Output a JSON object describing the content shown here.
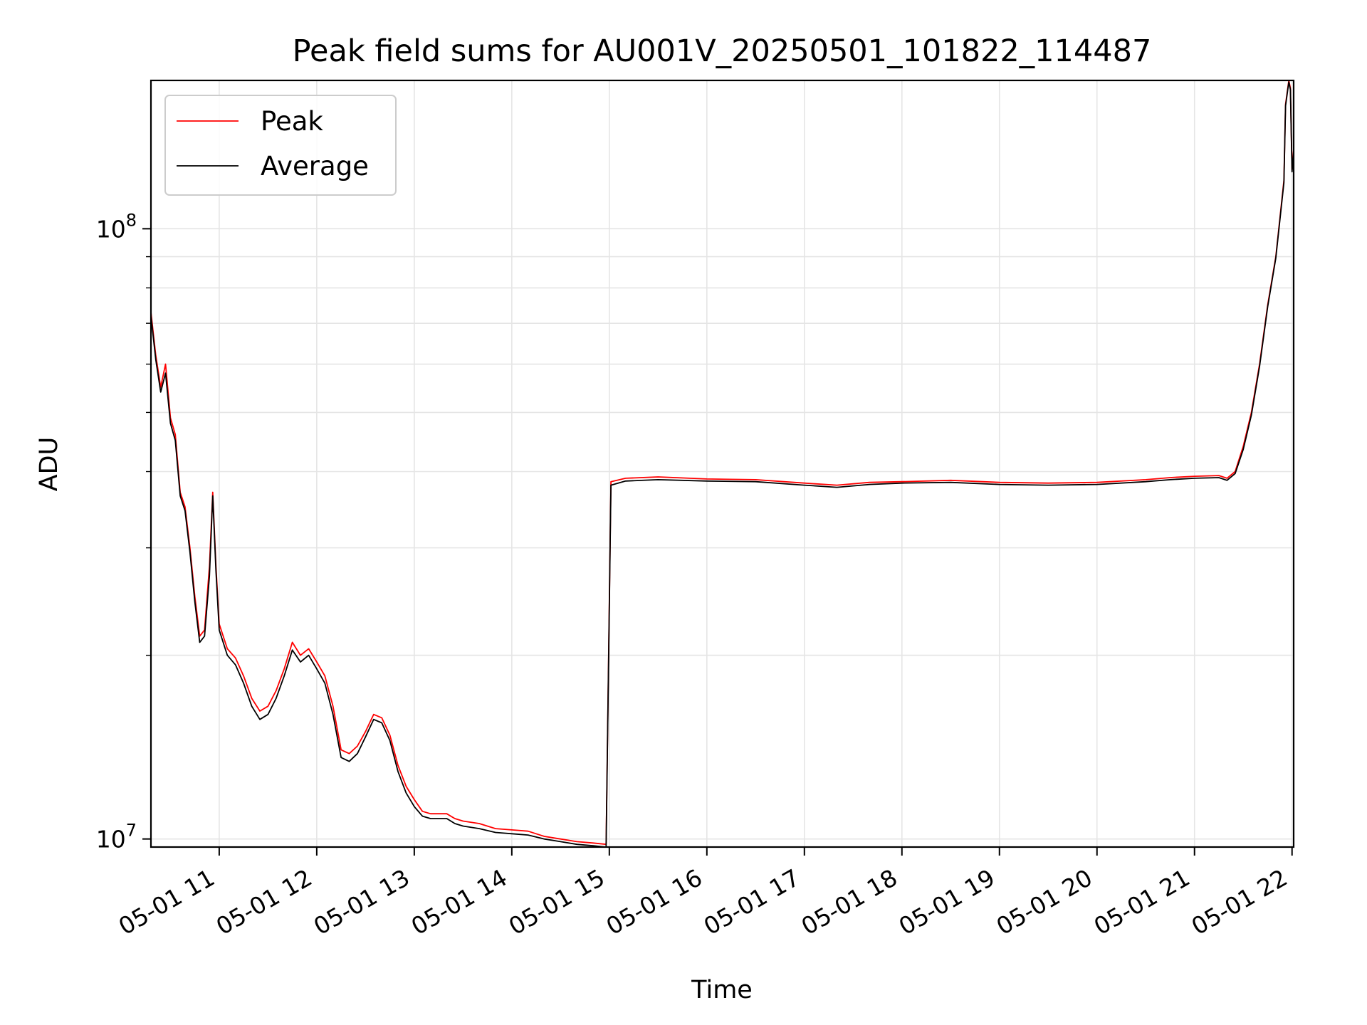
{
  "chart_data": {
    "type": "line",
    "title": "Peak field sums for AU001V_20250501_101822_114487",
    "xlabel": "Time",
    "ylabel": "ADU",
    "yscale": "log",
    "xlim": [
      "05-01 10:18",
      "05-01 22:01"
    ],
    "ylim": [
      9700000,
      175000000
    ],
    "x_tick_labels": [
      "05-01 11",
      "05-01 12",
      "05-01 13",
      "05-01 14",
      "05-01 15",
      "05-01 16",
      "05-01 17",
      "05-01 18",
      "05-01 19",
      "05-01 20",
      "05-01 21",
      "05-01 22"
    ],
    "y_tick_labels": [
      {
        "base": "10",
        "exp": "7",
        "value": 10000000
      },
      {
        "base": "10",
        "exp": "8",
        "value": 100000000
      }
    ],
    "grid": true,
    "legend_position": "upper-left",
    "series": [
      {
        "name": "Peak",
        "color": "#ff0000",
        "x": [
          "05-01 10:18",
          "05-01 10:21",
          "05-01 10:24",
          "05-01 10:27",
          "05-01 10:30",
          "05-01 10:33",
          "05-01 10:36",
          "05-01 10:39",
          "05-01 10:42",
          "05-01 10:45",
          "05-01 10:48",
          "05-01 10:51",
          "05-01 10:54",
          "05-01 10:56",
          "05-01 10:58",
          "05-01 11:00",
          "05-01 11:05",
          "05-01 11:10",
          "05-01 11:15",
          "05-01 11:20",
          "05-01 11:25",
          "05-01 11:30",
          "05-01 11:35",
          "05-01 11:40",
          "05-01 11:45",
          "05-01 11:50",
          "05-01 11:55",
          "05-01 12:00",
          "05-01 12:05",
          "05-01 12:10",
          "05-01 12:15",
          "05-01 12:20",
          "05-01 12:25",
          "05-01 12:30",
          "05-01 12:35",
          "05-01 12:40",
          "05-01 12:45",
          "05-01 12:50",
          "05-01 12:55",
          "05-01 13:00",
          "05-01 13:05",
          "05-01 13:10",
          "05-01 13:15",
          "05-01 13:20",
          "05-01 13:25",
          "05-01 13:30",
          "05-01 13:40",
          "05-01 13:50",
          "05-01 14:00",
          "05-01 14:10",
          "05-01 14:20",
          "05-01 14:30",
          "05-01 14:40",
          "05-01 14:50",
          "05-01 14:58",
          "05-01 15:01",
          "05-01 15:10",
          "05-01 15:30",
          "05-01 16:00",
          "05-01 16:30",
          "05-01 17:00",
          "05-01 17:20",
          "05-01 17:40",
          "05-01 18:00",
          "05-01 18:30",
          "05-01 19:00",
          "05-01 19:30",
          "05-01 20:00",
          "05-01 20:30",
          "05-01 20:45",
          "05-01 21:00",
          "05-01 21:15",
          "05-01 21:20",
          "05-01 21:25",
          "05-01 21:30",
          "05-01 21:35",
          "05-01 21:40",
          "05-01 21:45",
          "05-01 21:50",
          "05-01 21:55",
          "05-01 21:56",
          "05-01 21:58",
          "05-01 21:59",
          "05-01 22:00",
          "05-01 22:01"
        ],
        "y": [
          73000000,
          62000000,
          55000000,
          60000000,
          49000000,
          46000000,
          37000000,
          35000000,
          30000000,
          25000000,
          21500000,
          22000000,
          28000000,
          37000000,
          28000000,
          22500000,
          20500000,
          19800000,
          18500000,
          17000000,
          16200000,
          16500000,
          17500000,
          19000000,
          21000000,
          20000000,
          20500000,
          19500000,
          18500000,
          16500000,
          14000000,
          13800000,
          14200000,
          15000000,
          16000000,
          15800000,
          14800000,
          13200000,
          12200000,
          11600000,
          11100000,
          11000000,
          11000000,
          11000000,
          10800000,
          10700000,
          10600000,
          10400000,
          10350000,
          10300000,
          10100000,
          10000000,
          9900000,
          9850000,
          9800000,
          38500000,
          39000000,
          39200000,
          38900000,
          38800000,
          38300000,
          38000000,
          38400000,
          38500000,
          38700000,
          38400000,
          38300000,
          38400000,
          38800000,
          39100000,
          39300000,
          39400000,
          39000000,
          40000000,
          44000000,
          50000000,
          60000000,
          75000000,
          90000000,
          120000000,
          160000000,
          175000000,
          170000000,
          125000000,
          135000000
        ]
      },
      {
        "name": "Average",
        "color": "#000000",
        "x": [
          "05-01 10:18",
          "05-01 10:21",
          "05-01 10:24",
          "05-01 10:27",
          "05-01 10:30",
          "05-01 10:33",
          "05-01 10:36",
          "05-01 10:39",
          "05-01 10:42",
          "05-01 10:45",
          "05-01 10:48",
          "05-01 10:51",
          "05-01 10:54",
          "05-01 10:56",
          "05-01 10:58",
          "05-01 11:00",
          "05-01 11:05",
          "05-01 11:10",
          "05-01 11:15",
          "05-01 11:20",
          "05-01 11:25",
          "05-01 11:30",
          "05-01 11:35",
          "05-01 11:40",
          "05-01 11:45",
          "05-01 11:50",
          "05-01 11:55",
          "05-01 12:00",
          "05-01 12:05",
          "05-01 12:10",
          "05-01 12:15",
          "05-01 12:20",
          "05-01 12:25",
          "05-01 12:30",
          "05-01 12:35",
          "05-01 12:40",
          "05-01 12:45",
          "05-01 12:50",
          "05-01 12:55",
          "05-01 13:00",
          "05-01 13:05",
          "05-01 13:10",
          "05-01 13:15",
          "05-01 13:20",
          "05-01 13:25",
          "05-01 13:30",
          "05-01 13:40",
          "05-01 13:50",
          "05-01 14:00",
          "05-01 14:10",
          "05-01 14:20",
          "05-01 14:30",
          "05-01 14:40",
          "05-01 14:50",
          "05-01 14:58",
          "05-01 15:01",
          "05-01 15:10",
          "05-01 15:30",
          "05-01 16:00",
          "05-01 16:30",
          "05-01 17:00",
          "05-01 17:20",
          "05-01 17:40",
          "05-01 18:00",
          "05-01 18:30",
          "05-01 19:00",
          "05-01 19:30",
          "05-01 20:00",
          "05-01 20:30",
          "05-01 20:45",
          "05-01 21:00",
          "05-01 21:15",
          "05-01 21:20",
          "05-01 21:25",
          "05-01 21:30",
          "05-01 21:35",
          "05-01 21:40",
          "05-01 21:45",
          "05-01 21:50",
          "05-01 21:55",
          "05-01 21:56",
          "05-01 21:58",
          "05-01 21:59",
          "05-01 22:00",
          "05-01 22:01"
        ],
        "y": [
          72000000,
          61000000,
          54000000,
          58000000,
          48000000,
          45000000,
          36500000,
          34500000,
          29500000,
          24500000,
          21000000,
          21500000,
          27000000,
          36500000,
          27500000,
          22000000,
          20000000,
          19300000,
          18000000,
          16500000,
          15700000,
          16000000,
          17000000,
          18500000,
          20400000,
          19500000,
          20000000,
          19000000,
          18000000,
          16000000,
          13600000,
          13400000,
          13800000,
          14700000,
          15700000,
          15500000,
          14500000,
          12900000,
          11900000,
          11300000,
          10900000,
          10800000,
          10800000,
          10800000,
          10600000,
          10500000,
          10400000,
          10250000,
          10200000,
          10150000,
          10000000,
          9900000,
          9800000,
          9750000,
          9700000,
          38000000,
          38600000,
          38800000,
          38600000,
          38500000,
          38000000,
          37700000,
          38100000,
          38300000,
          38400000,
          38100000,
          38000000,
          38100000,
          38500000,
          38800000,
          39000000,
          39100000,
          38700000,
          39700000,
          43500000,
          49500000,
          59500000,
          74500000,
          89500000,
          119000000,
          159000000,
          174000000,
          169000000,
          124000000,
          134000000
        ]
      }
    ]
  }
}
